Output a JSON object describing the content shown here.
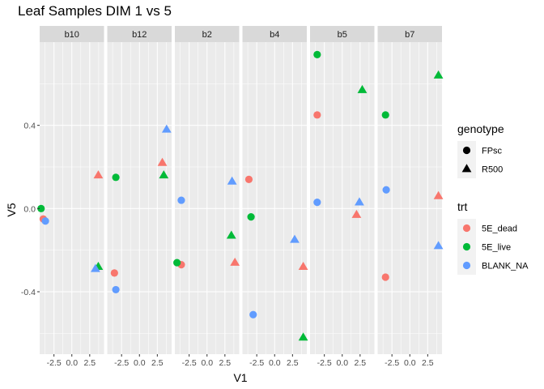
{
  "chart_data": {
    "type": "scatter",
    "title": "Leaf Samples DIM 1 vs 5",
    "xlabel": "V1",
    "ylabel": "V5",
    "xlim": [
      -4.5,
      4.5
    ],
    "ylim": [
      -0.7,
      0.8
    ],
    "x_ticks": [
      -2.5,
      0.0,
      2.5
    ],
    "x_tick_labels": [
      "-2.5",
      "0.0",
      "2.5"
    ],
    "y_ticks": [
      -0.4,
      0.0,
      0.4
    ],
    "y_tick_labels": [
      "-0.4",
      "0.0",
      "0.4"
    ],
    "grid": true,
    "facets": [
      "b10",
      "b12",
      "b2",
      "b4",
      "b5",
      "b7"
    ],
    "legends": [
      {
        "title": "genotype",
        "entries": [
          {
            "label": "FPsc",
            "shape": "circle"
          },
          {
            "label": "R500",
            "shape": "triangle"
          }
        ]
      },
      {
        "title": "trt",
        "entries": [
          {
            "label": "5E_dead",
            "color": "#F8766D"
          },
          {
            "label": "5E_live",
            "color": "#00BA38"
          },
          {
            "label": "BLANK_NA",
            "color": "#619CFF"
          }
        ]
      }
    ],
    "legend_placement": "right",
    "points": [
      {
        "facet": "b10",
        "x": -4.0,
        "y": -0.05,
        "genotype": "FPsc",
        "trt": "5E_dead"
      },
      {
        "facet": "b10",
        "x": -4.3,
        "y": 0.0,
        "genotype": "FPsc",
        "trt": "5E_live"
      },
      {
        "facet": "b10",
        "x": -3.7,
        "y": -0.06,
        "genotype": "FPsc",
        "trt": "BLANK_NA"
      },
      {
        "facet": "b10",
        "x": 3.7,
        "y": 0.16,
        "genotype": "R500",
        "trt": "5E_dead"
      },
      {
        "facet": "b10",
        "x": 3.7,
        "y": -0.28,
        "genotype": "R500",
        "trt": "5E_live"
      },
      {
        "facet": "b10",
        "x": 3.3,
        "y": -0.29,
        "genotype": "R500",
        "trt": "BLANK_NA"
      },
      {
        "facet": "b12",
        "x": -3.5,
        "y": -0.31,
        "genotype": "FPsc",
        "trt": "5E_dead"
      },
      {
        "facet": "b12",
        "x": -3.3,
        "y": 0.15,
        "genotype": "FPsc",
        "trt": "5E_live"
      },
      {
        "facet": "b12",
        "x": -3.3,
        "y": -0.39,
        "genotype": "FPsc",
        "trt": "BLANK_NA"
      },
      {
        "facet": "b12",
        "x": 3.2,
        "y": 0.22,
        "genotype": "R500",
        "trt": "5E_dead"
      },
      {
        "facet": "b12",
        "x": 3.4,
        "y": 0.16,
        "genotype": "R500",
        "trt": "5E_live"
      },
      {
        "facet": "b12",
        "x": 3.8,
        "y": 0.38,
        "genotype": "R500",
        "trt": "BLANK_NA"
      },
      {
        "facet": "b2",
        "x": -3.6,
        "y": -0.27,
        "genotype": "FPsc",
        "trt": "5E_dead"
      },
      {
        "facet": "b2",
        "x": -4.2,
        "y": -0.26,
        "genotype": "FPsc",
        "trt": "5E_live"
      },
      {
        "facet": "b2",
        "x": -3.6,
        "y": 0.04,
        "genotype": "FPsc",
        "trt": "BLANK_NA"
      },
      {
        "facet": "b2",
        "x": 3.9,
        "y": -0.26,
        "genotype": "R500",
        "trt": "5E_dead"
      },
      {
        "facet": "b2",
        "x": 3.4,
        "y": -0.13,
        "genotype": "R500",
        "trt": "5E_live"
      },
      {
        "facet": "b2",
        "x": 3.5,
        "y": 0.13,
        "genotype": "R500",
        "trt": "BLANK_NA"
      },
      {
        "facet": "b4",
        "x": -3.6,
        "y": 0.14,
        "genotype": "FPsc",
        "trt": "5E_dead"
      },
      {
        "facet": "b4",
        "x": -3.3,
        "y": -0.04,
        "genotype": "FPsc",
        "trt": "5E_live"
      },
      {
        "facet": "b4",
        "x": -3.0,
        "y": -0.51,
        "genotype": "FPsc",
        "trt": "BLANK_NA"
      },
      {
        "facet": "b4",
        "x": 4.0,
        "y": -0.28,
        "genotype": "R500",
        "trt": "5E_dead"
      },
      {
        "facet": "b4",
        "x": 4.0,
        "y": -0.62,
        "genotype": "R500",
        "trt": "5E_live"
      },
      {
        "facet": "b4",
        "x": 2.8,
        "y": -0.15,
        "genotype": "R500",
        "trt": "BLANK_NA"
      },
      {
        "facet": "b5",
        "x": -3.5,
        "y": 0.45,
        "genotype": "FPsc",
        "trt": "5E_dead"
      },
      {
        "facet": "b5",
        "x": -3.5,
        "y": 0.74,
        "genotype": "FPsc",
        "trt": "5E_live"
      },
      {
        "facet": "b5",
        "x": -3.5,
        "y": 0.03,
        "genotype": "FPsc",
        "trt": "BLANK_NA"
      },
      {
        "facet": "b5",
        "x": 2.0,
        "y": -0.03,
        "genotype": "R500",
        "trt": "5E_dead"
      },
      {
        "facet": "b5",
        "x": 2.8,
        "y": 0.57,
        "genotype": "R500",
        "trt": "5E_live"
      },
      {
        "facet": "b5",
        "x": 2.4,
        "y": 0.03,
        "genotype": "R500",
        "trt": "BLANK_NA"
      },
      {
        "facet": "b7",
        "x": -3.4,
        "y": -0.33,
        "genotype": "FPsc",
        "trt": "5E_dead"
      },
      {
        "facet": "b7",
        "x": -3.4,
        "y": 0.45,
        "genotype": "FPsc",
        "trt": "5E_live"
      },
      {
        "facet": "b7",
        "x": -3.3,
        "y": 0.09,
        "genotype": "FPsc",
        "trt": "BLANK_NA"
      },
      {
        "facet": "b7",
        "x": 4.0,
        "y": 0.06,
        "genotype": "R500",
        "trt": "5E_dead"
      },
      {
        "facet": "b7",
        "x": 4.0,
        "y": 0.64,
        "genotype": "R500",
        "trt": "5E_live"
      },
      {
        "facet": "b7",
        "x": 4.0,
        "y": -0.18,
        "genotype": "R500",
        "trt": "BLANK_NA"
      }
    ]
  }
}
